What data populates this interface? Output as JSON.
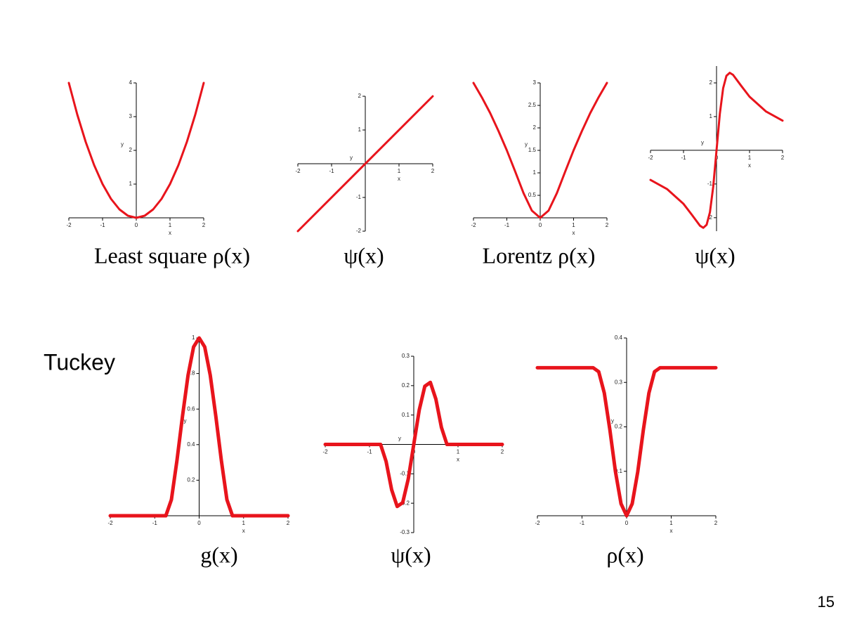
{
  "label": "Tuckey",
  "page_number": "15",
  "chart_data": [
    {
      "type": "line",
      "title": "Least square ρ(x)",
      "xlabel": "x",
      "ylabel": "y",
      "color": "#e8141c",
      "x": [
        -2,
        -1.75,
        -1.5,
        -1.25,
        -1,
        -0.75,
        -0.5,
        -0.25,
        0,
        0.25,
        0.5,
        0.75,
        1,
        1.25,
        1.5,
        1.75,
        2
      ],
      "values": [
        4,
        3.0625,
        2.25,
        1.5625,
        1,
        0.5625,
        0.25,
        0.0625,
        0,
        0.0625,
        0.25,
        0.5625,
        1,
        1.5625,
        2.25,
        3.0625,
        4
      ],
      "xlim": [
        -2,
        2
      ],
      "ylim": [
        0,
        4
      ],
      "xticks": [
        -2,
        -1,
        0,
        1,
        2
      ],
      "yticks": [
        1,
        2,
        3,
        4
      ]
    },
    {
      "type": "line",
      "title": "ψ(x)",
      "xlabel": "x",
      "ylabel": "y",
      "color": "#e8141c",
      "x": [
        -2,
        2
      ],
      "values": [
        -2,
        2
      ],
      "xlim": [
        -2,
        2
      ],
      "ylim": [
        -2,
        2
      ],
      "xticks": [
        -2,
        -1,
        1,
        2
      ],
      "yticks": [
        -2,
        -1,
        1,
        2
      ]
    },
    {
      "type": "line",
      "title": "Lorentz ρ(x)",
      "xlabel": "x",
      "ylabel": "y",
      "color": "#e8141c",
      "x": [
        -2,
        -1.75,
        -1.5,
        -1.25,
        -1,
        -0.75,
        -0.5,
        -0.25,
        0,
        0.25,
        0.5,
        0.75,
        1,
        1.25,
        1.5,
        1.75,
        2
      ],
      "values": [
        3,
        2.68,
        2.33,
        1.93,
        1.5,
        1.03,
        0.55,
        0.16,
        0,
        0.16,
        0.55,
        1.03,
        1.5,
        1.93,
        2.33,
        2.68,
        3
      ],
      "xlim": [
        -2,
        2
      ],
      "ylim": [
        0,
        3
      ],
      "xticks": [
        -2,
        -1,
        0,
        1,
        2
      ],
      "yticks": [
        0.5,
        1,
        1.5,
        2,
        2.5,
        3
      ]
    },
    {
      "type": "line",
      "title": "ψ(x)",
      "xlabel": "x",
      "ylabel": "y",
      "color": "#e8141c",
      "x": [
        -2,
        -1.5,
        -1,
        -0.75,
        -0.5,
        -0.4,
        -0.3,
        -0.2,
        -0.1,
        0,
        0.1,
        0.2,
        0.3,
        0.4,
        0.5,
        0.75,
        1,
        1.5,
        2
      ],
      "values": [
        -0.88,
        -1.15,
        -1.59,
        -1.91,
        -2.24,
        -2.3,
        -2.21,
        -1.84,
        -1.08,
        0,
        1.08,
        1.84,
        2.21,
        2.3,
        2.24,
        1.91,
        1.59,
        1.15,
        0.88
      ],
      "xlim": [
        -2,
        2
      ],
      "ylim": [
        -2.4,
        2.5
      ],
      "xticks": [
        -2,
        -1,
        0,
        1,
        2
      ],
      "yticks": [
        -2,
        -1,
        1,
        2
      ]
    },
    {
      "type": "line",
      "title": "g(x)",
      "xlabel": "x",
      "ylabel": "y",
      "color": "#e8141c",
      "x": [
        -2,
        -1.5,
        -1,
        -0.75,
        -0.625,
        -0.5,
        -0.375,
        -0.25,
        -0.125,
        0,
        0.125,
        0.25,
        0.375,
        0.5,
        0.625,
        0.75,
        1,
        1.5,
        2
      ],
      "values": [
        0,
        0,
        0,
        0,
        0.09,
        0.31,
        0.56,
        0.79,
        0.95,
        1,
        0.95,
        0.79,
        0.56,
        0.31,
        0.09,
        0,
        0,
        0,
        0
      ],
      "xlim": [
        -2,
        2
      ],
      "ylim": [
        0,
        1
      ],
      "xticks": [
        -2,
        -1,
        0,
        1,
        2
      ],
      "yticks": [
        0.2,
        0.4,
        0.6,
        0.8,
        1
      ]
    },
    {
      "type": "line",
      "title": "ψ(x)",
      "xlabel": "x",
      "ylabel": "y",
      "color": "#e8141c",
      "x": [
        -2,
        -1.5,
        -1,
        -0.75,
        -0.625,
        -0.5,
        -0.375,
        -0.25,
        -0.125,
        0,
        0.125,
        0.25,
        0.375,
        0.5,
        0.625,
        0.75,
        1,
        1.5,
        2
      ],
      "values": [
        0,
        0,
        0,
        0,
        -0.058,
        -0.154,
        -0.211,
        -0.198,
        -0.118,
        0,
        0.118,
        0.198,
        0.211,
        0.154,
        0.058,
        0,
        0,
        0,
        0
      ],
      "xlim": [
        -2,
        2
      ],
      "ylim": [
        -0.3,
        0.3
      ],
      "xticks": [
        -2,
        -1,
        0,
        1,
        2
      ],
      "yticks": [
        -0.3,
        -0.2,
        -0.1,
        0.1,
        0.2,
        0.3
      ]
    },
    {
      "type": "line",
      "title": "ρ(x)",
      "xlabel": "x",
      "ylabel": "y",
      "color": "#e8141c",
      "x": [
        -2,
        -1.5,
        -1,
        -0.75,
        -0.625,
        -0.5,
        -0.375,
        -0.25,
        -0.125,
        0,
        0.125,
        0.25,
        0.375,
        0.5,
        0.625,
        0.75,
        1,
        1.5,
        2
      ],
      "values": [
        0.333,
        0.333,
        0.333,
        0.333,
        0.324,
        0.276,
        0.193,
        0.099,
        0.027,
        0,
        0.027,
        0.099,
        0.193,
        0.276,
        0.324,
        0.333,
        0.333,
        0.333,
        0.333
      ],
      "xlim": [
        -2,
        2
      ],
      "ylim": [
        0,
        0.4
      ],
      "xticks": [
        -2,
        -1,
        0,
        1,
        2
      ],
      "yticks": [
        0.1,
        0.2,
        0.3,
        0.4
      ]
    }
  ]
}
